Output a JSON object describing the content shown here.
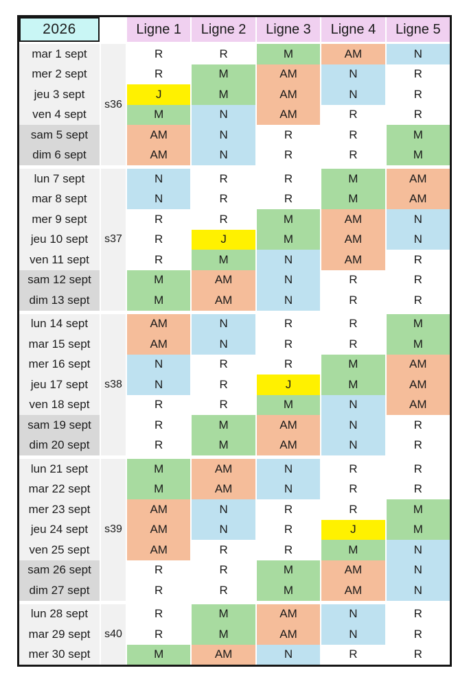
{
  "year": "2026",
  "columns": [
    "Ligne 1",
    "Ligne 2",
    "Ligne 3",
    "Ligne 4",
    "Ligne 5"
  ],
  "shift_codes": [
    "R",
    "M",
    "AM",
    "N",
    "J"
  ],
  "shift_colors": {
    "R": "#FFFFFF",
    "M": "#A8DBA0",
    "AM": "#F5BD9A",
    "N": "#BEE1F0",
    "J": "#FFF100"
  },
  "ui_colors": {
    "header_pink": "#F0D0F0",
    "year_cyan": "#C9F6F5",
    "weekday_label_bg": "#F1F1F1",
    "weekend_label_bg": "#D8D8D8",
    "week_col_bg": "#F1F1F1",
    "border_black": "#151515"
  },
  "weeks": [
    {
      "label": "s36",
      "days": [
        {
          "date": "mar 1 sept",
          "weekend": false,
          "shifts": [
            "R",
            "R",
            "M",
            "AM",
            "N"
          ]
        },
        {
          "date": "mer 2 sept",
          "weekend": false,
          "shifts": [
            "R",
            "M",
            "AM",
            "N",
            "R"
          ]
        },
        {
          "date": "jeu 3 sept",
          "weekend": false,
          "shifts": [
            "J",
            "M",
            "AM",
            "N",
            "R"
          ]
        },
        {
          "date": "ven 4 sept",
          "weekend": false,
          "shifts": [
            "M",
            "N",
            "AM",
            "R",
            "R"
          ]
        },
        {
          "date": "sam 5 sept",
          "weekend": true,
          "shifts": [
            "AM",
            "N",
            "R",
            "R",
            "M"
          ]
        },
        {
          "date": "dim 6 sept",
          "weekend": true,
          "shifts": [
            "AM",
            "N",
            "R",
            "R",
            "M"
          ]
        }
      ]
    },
    {
      "label": "s37",
      "days": [
        {
          "date": "lun 7 sept",
          "weekend": false,
          "shifts": [
            "N",
            "R",
            "R",
            "M",
            "AM"
          ]
        },
        {
          "date": "mar 8 sept",
          "weekend": false,
          "shifts": [
            "N",
            "R",
            "R",
            "M",
            "AM"
          ]
        },
        {
          "date": "mer 9 sept",
          "weekend": false,
          "shifts": [
            "R",
            "R",
            "M",
            "AM",
            "N"
          ]
        },
        {
          "date": "jeu 10 sept",
          "weekend": false,
          "shifts": [
            "R",
            "J",
            "M",
            "AM",
            "N"
          ]
        },
        {
          "date": "ven 11 sept",
          "weekend": false,
          "shifts": [
            "R",
            "M",
            "N",
            "AM",
            "R"
          ]
        },
        {
          "date": "sam 12 sept",
          "weekend": true,
          "shifts": [
            "M",
            "AM",
            "N",
            "R",
            "R"
          ]
        },
        {
          "date": "dim 13 sept",
          "weekend": true,
          "shifts": [
            "M",
            "AM",
            "N",
            "R",
            "R"
          ]
        }
      ]
    },
    {
      "label": "s38",
      "days": [
        {
          "date": "lun 14 sept",
          "weekend": false,
          "shifts": [
            "AM",
            "N",
            "R",
            "R",
            "M"
          ]
        },
        {
          "date": "mar 15 sept",
          "weekend": false,
          "shifts": [
            "AM",
            "N",
            "R",
            "R",
            "M"
          ]
        },
        {
          "date": "mer 16 sept",
          "weekend": false,
          "shifts": [
            "N",
            "R",
            "R",
            "M",
            "AM"
          ]
        },
        {
          "date": "jeu 17 sept",
          "weekend": false,
          "shifts": [
            "N",
            "R",
            "J",
            "M",
            "AM"
          ]
        },
        {
          "date": "ven 18 sept",
          "weekend": false,
          "shifts": [
            "R",
            "R",
            "M",
            "N",
            "AM"
          ]
        },
        {
          "date": "sam 19 sept",
          "weekend": true,
          "shifts": [
            "R",
            "M",
            "AM",
            "N",
            "R"
          ]
        },
        {
          "date": "dim 20 sept",
          "weekend": true,
          "shifts": [
            "R",
            "M",
            "AM",
            "N",
            "R"
          ]
        }
      ]
    },
    {
      "label": "s39",
      "days": [
        {
          "date": "lun 21 sept",
          "weekend": false,
          "shifts": [
            "M",
            "AM",
            "N",
            "R",
            "R"
          ]
        },
        {
          "date": "mar 22 sept",
          "weekend": false,
          "shifts": [
            "M",
            "AM",
            "N",
            "R",
            "R"
          ]
        },
        {
          "date": "mer 23 sept",
          "weekend": false,
          "shifts": [
            "AM",
            "N",
            "R",
            "R",
            "M"
          ]
        },
        {
          "date": "jeu 24 sept",
          "weekend": false,
          "shifts": [
            "AM",
            "N",
            "R",
            "J",
            "M"
          ]
        },
        {
          "date": "ven 25 sept",
          "weekend": false,
          "shifts": [
            "AM",
            "R",
            "R",
            "M",
            "N"
          ]
        },
        {
          "date": "sam 26 sept",
          "weekend": true,
          "shifts": [
            "R",
            "R",
            "M",
            "AM",
            "N"
          ]
        },
        {
          "date": "dim 27 sept",
          "weekend": true,
          "shifts": [
            "R",
            "R",
            "M",
            "AM",
            "N"
          ]
        }
      ]
    },
    {
      "label": "s40",
      "days": [
        {
          "date": "lun 28 sept",
          "weekend": false,
          "shifts": [
            "R",
            "M",
            "AM",
            "N",
            "R"
          ]
        },
        {
          "date": "mar 29 sept",
          "weekend": false,
          "shifts": [
            "R",
            "M",
            "AM",
            "N",
            "R"
          ]
        },
        {
          "date": "mer 30 sept",
          "weekend": false,
          "shifts": [
            "M",
            "AM",
            "N",
            "R",
            "R"
          ]
        }
      ]
    }
  ]
}
